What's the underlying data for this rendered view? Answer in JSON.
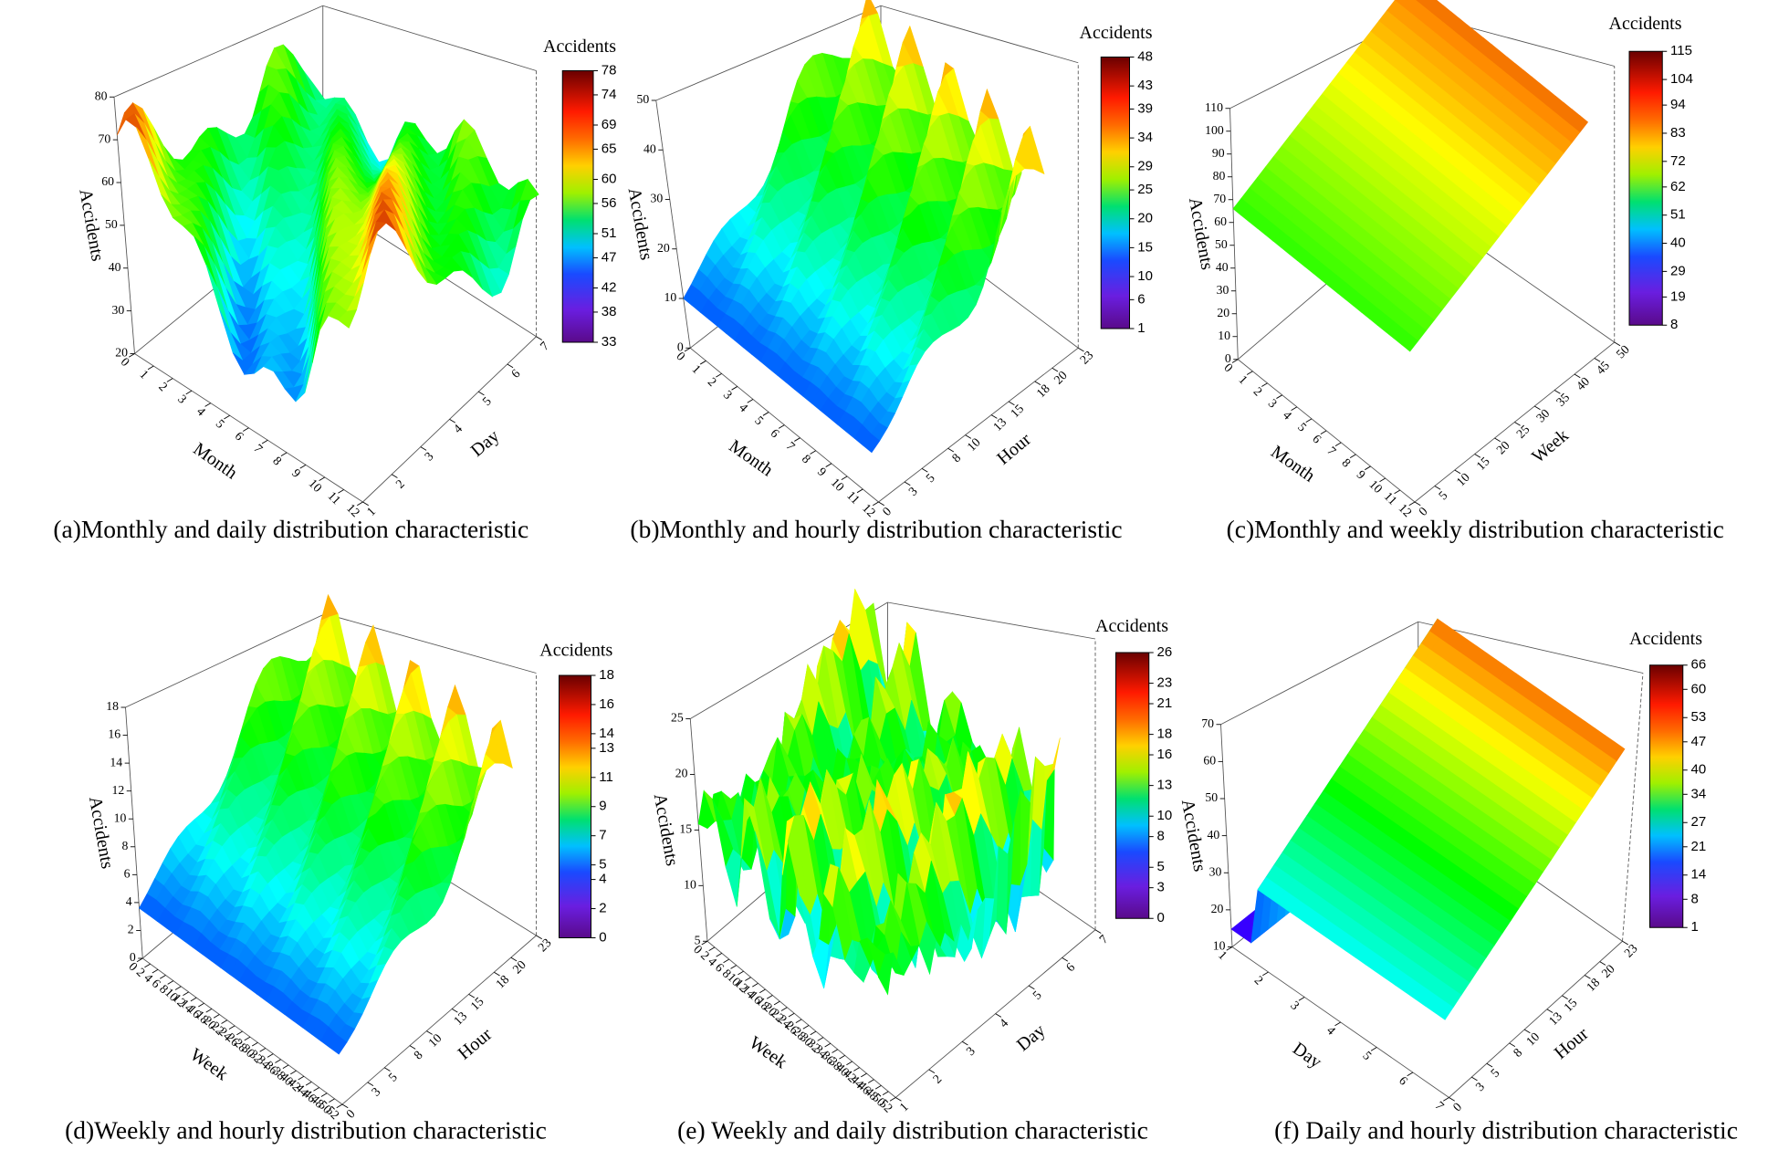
{
  "chart_data": [
    {
      "type": "surface3d",
      "caption": "(a)Monthly and daily distribution characteristic",
      "x_label": "Month",
      "y_label": "Day",
      "z_label": "Accidents",
      "xticks": [
        0,
        1,
        2,
        3,
        4,
        5,
        6,
        7,
        8,
        9,
        10,
        11,
        12
      ],
      "yticks": [
        1,
        2,
        3,
        4,
        5,
        6,
        7
      ],
      "zticks": [
        20,
        30,
        40,
        50,
        60,
        70,
        80
      ],
      "colorbar": {
        "label": "Accidents",
        "ticks": [
          33,
          38,
          42,
          47,
          51,
          56,
          60,
          65,
          69,
          74,
          78
        ]
      }
    },
    {
      "type": "surface3d",
      "caption": "(b)Monthly and hourly distribution characteristic",
      "x_label": "Month",
      "y_label": "Hour",
      "z_label": "Accidents",
      "xticks": [
        0,
        1,
        2,
        3,
        4,
        5,
        6,
        7,
        8,
        9,
        10,
        11,
        12
      ],
      "yticks": [
        0,
        3,
        5,
        8,
        10,
        13,
        15,
        18,
        20,
        23
      ],
      "zticks": [
        0,
        10,
        20,
        30,
        40,
        50
      ],
      "colorbar": {
        "label": "Accidents",
        "ticks": [
          1,
          6,
          10,
          15,
          20,
          25,
          29,
          34,
          39,
          43,
          48
        ]
      }
    },
    {
      "type": "surface3d",
      "caption": "(c)Monthly and weekly distribution characteristic",
      "x_label": "Month",
      "y_label": "Week",
      "z_label": "Accidents",
      "xticks": [
        0,
        1,
        2,
        3,
        4,
        5,
        6,
        7,
        8,
        9,
        10,
        11,
        12
      ],
      "yticks": [
        0,
        5,
        10,
        15,
        20,
        25,
        30,
        35,
        40,
        45,
        50
      ],
      "zticks": [
        0,
        10,
        20,
        30,
        40,
        50,
        60,
        70,
        80,
        90,
        100,
        110
      ],
      "colorbar": {
        "label": "Accidents",
        "ticks": [
          8,
          19,
          29,
          40,
          51,
          62,
          72,
          83,
          94,
          104,
          115
        ]
      }
    },
    {
      "type": "surface3d",
      "caption": "(d)Weekly and hourly distribution characteristic",
      "x_label": "Week",
      "y_label": "Hour",
      "z_label": "Accidents",
      "xticks": [
        0,
        2,
        4,
        6,
        8,
        10,
        12,
        14,
        16,
        18,
        20,
        22,
        24,
        26,
        28,
        30,
        32,
        34,
        36,
        38,
        40,
        42,
        44,
        46,
        48,
        50,
        52
      ],
      "yticks": [
        0,
        3,
        5,
        8,
        10,
        13,
        15,
        18,
        20,
        23
      ],
      "zticks": [
        0,
        2,
        4,
        6,
        8,
        10,
        12,
        14,
        16,
        18
      ],
      "colorbar": {
        "label": "Accidents",
        "ticks": [
          0,
          2,
          4,
          5,
          7,
          9,
          11,
          13,
          14,
          16,
          18
        ]
      }
    },
    {
      "type": "surface3d",
      "caption": "(e) Weekly and daily distribution characteristic",
      "x_label": "Week",
      "y_label": "Day",
      "z_label": "Accidents",
      "xticks": [
        0,
        2,
        4,
        6,
        8,
        10,
        12,
        14,
        16,
        18,
        20,
        22,
        24,
        26,
        28,
        30,
        32,
        34,
        36,
        38,
        40,
        42,
        44,
        46,
        48,
        50,
        52
      ],
      "yticks": [
        1,
        2,
        3,
        4,
        5,
        6,
        7
      ],
      "zticks": [
        5,
        10,
        15,
        20,
        25
      ],
      "colorbar": {
        "label": "Accidents",
        "ticks": [
          0,
          3,
          5,
          8,
          10,
          13,
          16,
          18,
          21,
          23,
          26
        ]
      }
    },
    {
      "type": "surface3d",
      "caption": "(f) Daily and hourly distribution characteristic",
      "x_label": "Day",
      "y_label": "Hour",
      "z_label": "Accidents",
      "xticks": [
        1,
        2,
        3,
        4,
        5,
        6,
        7
      ],
      "yticks": [
        0,
        3,
        5,
        8,
        10,
        13,
        15,
        18,
        20,
        23
      ],
      "zticks": [
        10,
        20,
        30,
        40,
        50,
        60,
        70
      ],
      "colorbar": {
        "label": "Accidents",
        "ticks": [
          1,
          8,
          14,
          21,
          27,
          34,
          40,
          47,
          53,
          60,
          66
        ]
      }
    }
  ]
}
